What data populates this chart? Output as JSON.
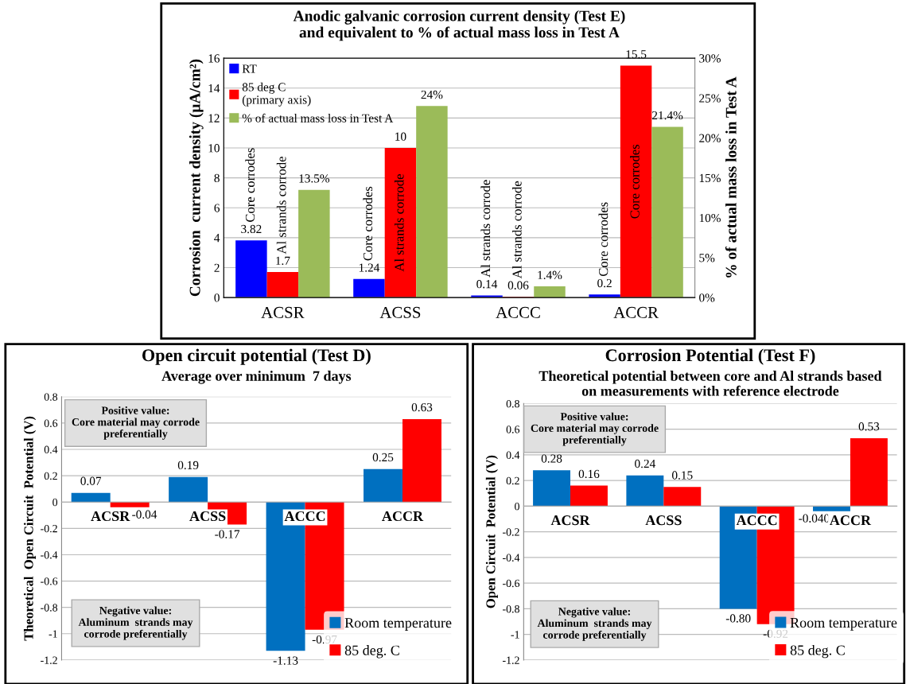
{
  "chart_data": [
    {
      "type": "bar",
      "title": "Anodic galvanic corrosion current density (Test E)\nand equivalent to % of actual mass loss in Test A",
      "ylabel": "Corrosion  current density (µA/cm²)",
      "y2label": "% of actual mass loss in Test A",
      "categories": [
        "ACSR",
        "ACSS",
        "ACCC",
        "ACCR"
      ],
      "series": [
        {
          "name": "RT",
          "color": "#0000ff",
          "values": [
            3.82,
            1.24,
            0.14,
            0.2
          ],
          "value_labels": [
            "3.82",
            "1.24",
            "0.14",
            "0.2"
          ]
        },
        {
          "name": "85 deg C\n(primary axis)",
          "color": "#ff0000",
          "values": [
            1.7,
            10,
            0.06,
            15.5
          ],
          "value_labels": [
            "1.7",
            "10",
            "0.06",
            "15.5"
          ]
        },
        {
          "name": "% of actual mass loss in Test A",
          "color": "#9bbb59",
          "axis": "y2",
          "values": [
            13.5,
            24,
            1.4,
            21.4
          ],
          "value_labels": [
            "13.5%",
            "24%",
            "1.4%",
            "21.4%"
          ]
        }
      ],
      "ylim": [
        0,
        16
      ],
      "yticks": [
        0,
        2,
        4,
        6,
        8,
        10,
        12,
        14,
        16
      ],
      "y2lim": [
        0,
        30
      ],
      "y2ticks": [
        {
          "value": 0,
          "label": "0%"
        },
        {
          "value": 5,
          "label": "5%"
        },
        {
          "value": 10,
          "label": "10%"
        },
        {
          "value": 15,
          "label": "15%"
        },
        {
          "value": 20,
          "label": "20%"
        },
        {
          "value": 25,
          "label": "25%"
        },
        {
          "value": 30,
          "label": "30%"
        }
      ],
      "annotations": [
        "Core corrodes",
        "Al strands corrode",
        "Core corrodes",
        "Al strands corrode",
        "Al strands corrode",
        "Al strands corrode",
        "Core corrodes",
        "Core corrodes"
      ],
      "grid": "y",
      "legend": "top left"
    },
    {
      "type": "bar",
      "title": "Open circuit potential (Test D)",
      "subtitle": "Average over minimum  7 days",
      "ylabel": "Theoretical  Open Circuit  Potential (V)",
      "categories": [
        "ACSR",
        "ACSS",
        "ACCC",
        "ACCR"
      ],
      "series": [
        {
          "name": "Room temperature",
          "color": "#0070c0",
          "values": [
            0.07,
            0.19,
            -1.13,
            0.25
          ],
          "value_labels": [
            "0.07",
            "0.19",
            "-1.13",
            "0.25"
          ]
        },
        {
          "name": "85 deg. C",
          "color": "#ff0000",
          "values": [
            -0.04,
            -0.17,
            -0.97,
            0.63
          ],
          "value_labels": [
            "-0.04",
            "-0.17",
            "-0.97",
            "0.63"
          ]
        }
      ],
      "ylim": [
        -1.2,
        0.8
      ],
      "yticks": [
        {
          "value": -1.2,
          "label": "-1.2"
        },
        {
          "value": -1,
          "label": "-1"
        },
        {
          "value": -0.8,
          "label": "-0.8"
        },
        {
          "value": -0.6,
          "label": "-0.6"
        },
        {
          "value": -0.4,
          "label": "-0.4"
        },
        {
          "value": -0.2,
          "label": "-0.2"
        },
        0,
        0.2,
        0.4,
        0.6,
        0.8
      ],
      "annotations": [
        "Positive value:\nCore material may corrode\npreferentially",
        "Negative value:\nAluminum  strands may\ncorrode preferentially"
      ],
      "grid": "y",
      "legend": "bottom right"
    },
    {
      "type": "bar",
      "title": "Corrosion Potential (Test F)",
      "subtitle": "Theoretical potential between core and Al strands based\non measurements with reference electrode",
      "ylabel": "Open Circuit  Potential (V)",
      "categories": [
        "ACSR",
        "ACSS",
        "ACCC",
        "ACCR"
      ],
      "series": [
        {
          "name": "Room temperature",
          "color": "#0070c0",
          "values": [
            0.28,
            0.24,
            -0.8,
            -0.04
          ],
          "value_labels": [
            "0.28",
            "0.24",
            "-0.80",
            "-0.040"
          ]
        },
        {
          "name": "85 deg. C",
          "color": "#ff0000",
          "values": [
            0.16,
            0.15,
            -0.92,
            0.53
          ],
          "value_labels": [
            "0.16",
            "0.15",
            "-0.92",
            "0.53"
          ]
        }
      ],
      "ylim": [
        -1.2,
        0.8
      ],
      "yticks": [
        {
          "value": -1.2,
          "label": "-1.2"
        },
        {
          "value": -1,
          "label": "-1"
        },
        {
          "value": -0.8,
          "label": "-0.8"
        },
        {
          "value": -0.6,
          "label": "-0.6"
        },
        {
          "value": -0.4,
          "label": "-0.4"
        },
        {
          "value": -0.2,
          "label": "-0.2"
        },
        0,
        0.2,
        0.4,
        0.6,
        0.8
      ],
      "annotations": [
        "Positive value:\nCore material may corrode\npreferentially",
        "Negative value:\nAluminum  strands may\ncorrode preferentially"
      ],
      "grid": "y",
      "legend": "bottom right"
    }
  ]
}
